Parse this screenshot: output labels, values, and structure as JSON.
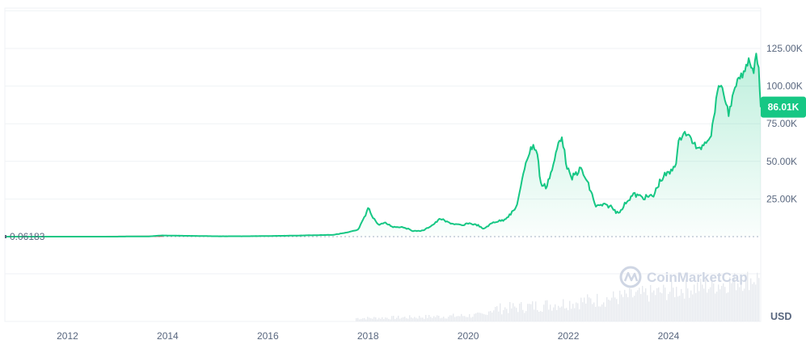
{
  "chart_data": {
    "type": "area",
    "y_tick_labels": [
      "125.00K",
      "100.00K",
      "75.00K",
      "50.00K",
      "25.00K"
    ],
    "y_ticks": [
      125000,
      100000,
      75000,
      50000,
      25000
    ],
    "ylim": [
      0,
      150000
    ],
    "x_tick_labels": [
      "2012",
      "2014",
      "2016",
      "2018",
      "2020",
      "2022",
      "2024"
    ],
    "xlim": [
      2010.75,
      2025.84
    ],
    "reference_value": 0.06183,
    "reference_label": "0.06183",
    "current_value_label": "86.01K",
    "currency": "USD",
    "watermark": "CoinMarketCap",
    "colors": {
      "up": "#16c784",
      "down": "#ea3943",
      "grid": "#eff2f5",
      "text": "#58667e"
    },
    "series": [
      {
        "x": [
          2010.75,
          2011.5,
          2012.5,
          2013.0,
          2013.3,
          2013.6,
          2013.9,
          2014.2,
          2014.6,
          2015.0,
          2015.5,
          2016.0,
          2016.5,
          2017.0,
          2017.3,
          2017.6,
          2017.8,
          2017.95,
          2018.0,
          2018.1,
          2018.2,
          2018.35,
          2018.5,
          2018.7,
          2018.9,
          2018.95,
          2019.1,
          2019.3,
          2019.45,
          2019.55,
          2019.7,
          2019.9,
          2020.0,
          2020.2,
          2020.3,
          2020.5,
          2020.7,
          2020.85,
          2020.95,
          2021.05,
          2021.15,
          2021.25,
          2021.3,
          2021.38,
          2021.45,
          2021.55,
          2021.7,
          2021.8,
          2021.87,
          2021.95,
          2022.05,
          2022.15,
          2022.25,
          2022.35,
          2022.45,
          2022.55,
          2022.7,
          2022.85,
          2022.95,
          2023.05,
          2023.15,
          2023.3,
          2023.5,
          2023.7,
          2023.8,
          2023.9,
          2024.05,
          2024.15,
          2024.2,
          2024.3,
          2024.45,
          2024.6,
          2024.7,
          2024.85,
          2024.95,
          2025.0,
          2025.1,
          2025.2,
          2025.3,
          2025.4,
          2025.5,
          2025.6,
          2025.7,
          2025.75,
          2025.8,
          2025.84
        ],
        "values": [
          0.06183,
          5,
          10,
          20,
          130,
          100,
          800,
          600,
          450,
          250,
          250,
          420,
          650,
          1000,
          1200,
          2800,
          4500,
          14000,
          19000,
          13000,
          8000,
          9000,
          6500,
          6400,
          3800,
          3700,
          4000,
          8000,
          12000,
          10000,
          8500,
          7300,
          9000,
          7500,
          5000,
          9500,
          11000,
          15000,
          19000,
          32000,
          50000,
          58000,
          61000,
          55000,
          35000,
          33000,
          47000,
          62000,
          67000,
          50000,
          38000,
          42000,
          45000,
          38000,
          30000,
          20000,
          21000,
          20000,
          16500,
          17000,
          23000,
          28000,
          26000,
          27000,
          35000,
          40000,
          43000,
          50000,
          62000,
          70000,
          65000,
          57000,
          62000,
          68000,
          90000,
          102000,
          95000,
          82000,
          95000,
          105000,
          108000,
          118000,
          110000,
          122000,
          112000,
          86010
        ]
      }
    ]
  }
}
